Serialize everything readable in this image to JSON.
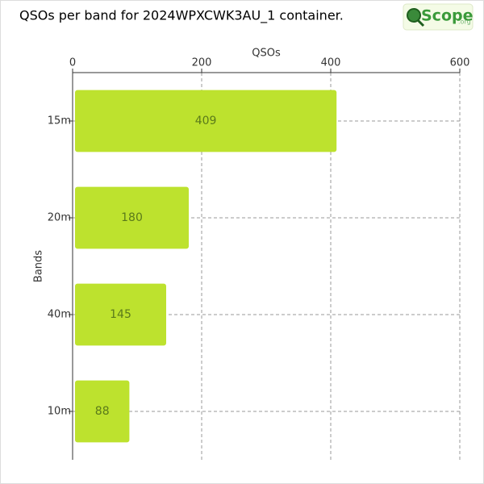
{
  "logo": {
    "text": "Scope",
    "suffix": ".org"
  },
  "chart_data": {
    "type": "bar",
    "orientation": "horizontal",
    "title": "QSOs per band for 2024WPXCWK3AU_1 container.",
    "x_label": "QSOs",
    "y_label": "Bands",
    "categories": [
      "15m",
      "20m",
      "40m",
      "10m"
    ],
    "values": [
      409,
      180,
      145,
      88
    ],
    "color": "#bde22e",
    "xlim": [
      0,
      600
    ],
    "xticks": [
      0,
      200,
      400,
      600
    ],
    "grid": true
  }
}
